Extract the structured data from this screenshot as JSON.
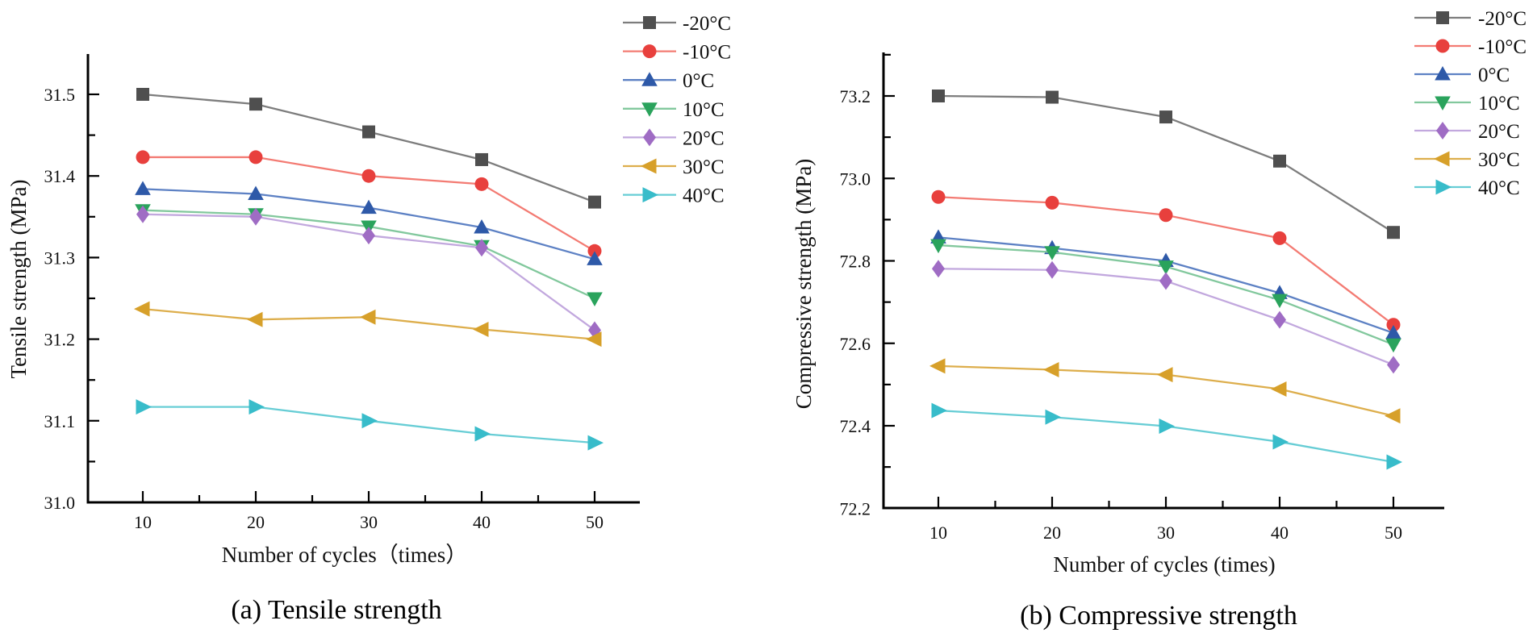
{
  "figure": {
    "background": "#ffffff",
    "caption_a": "(a) Tensile strength",
    "caption_b": "(b) Compressive strength"
  },
  "chart_data": [
    {
      "type": "line",
      "panel": "a",
      "title": "(a) Tensile strength",
      "xlabel": "Number of cycles（times）",
      "ylabel": "Tensile strength (MPa)",
      "x": [
        10,
        20,
        30,
        40,
        50
      ],
      "xlim": [
        5,
        55
      ],
      "ylim": [
        31.0,
        31.55
      ],
      "yticks": [
        31.0,
        31.1,
        31.2,
        31.3,
        31.4,
        31.5
      ],
      "grid": false,
      "legend_position": "outside-top-right",
      "series": [
        {
          "name": "-20°C",
          "marker": "square",
          "color": "#4f4f4f",
          "line_color": "#7d7d7d",
          "values": [
            31.5,
            31.488,
            31.454,
            31.42,
            31.368
          ]
        },
        {
          "name": "-10°C",
          "marker": "circle",
          "color": "#e8403d",
          "line_color": "#f37b73",
          "values": [
            31.423,
            31.423,
            31.4,
            31.39,
            31.308
          ]
        },
        {
          "name": "0°C",
          "marker": "triangle-up",
          "color": "#2e59a8",
          "line_color": "#5d81c4",
          "values": [
            31.384,
            31.378,
            31.361,
            31.337,
            31.298
          ]
        },
        {
          "name": "10°C",
          "marker": "triangle-down",
          "color": "#2aa35c",
          "line_color": "#82c89d",
          "values": [
            31.358,
            31.353,
            31.338,
            31.314,
            31.25
          ]
        },
        {
          "name": "20°C",
          "marker": "diamond",
          "color": "#9f6cc4",
          "line_color": "#c2a8de",
          "values": [
            31.353,
            31.35,
            31.327,
            31.312,
            31.211
          ]
        },
        {
          "name": "30°C",
          "marker": "triangle-left",
          "color": "#d7a02a",
          "line_color": "#ddae4c",
          "values": [
            31.237,
            31.224,
            31.227,
            31.212,
            31.2
          ]
        },
        {
          "name": "40°C",
          "marker": "triangle-right",
          "color": "#38bcca",
          "line_color": "#67cdd5",
          "values": [
            31.117,
            31.117,
            31.1,
            31.084,
            31.073
          ]
        }
      ]
    },
    {
      "type": "line",
      "panel": "b",
      "title": "(b) Compressive strength",
      "xlabel": "Number of cycles (times)",
      "ylabel": "Compressive strength (MPa)",
      "x": [
        10,
        20,
        30,
        40,
        50
      ],
      "xlim": [
        5,
        55
      ],
      "ylim": [
        72.2,
        73.3
      ],
      "yticks": [
        72.2,
        72.4,
        72.6,
        72.8,
        73.0,
        73.2
      ],
      "grid": false,
      "legend_position": "outside-top-right",
      "series": [
        {
          "name": "-20°C",
          "marker": "square",
          "color": "#4f4f4f",
          "line_color": "#7d7d7d",
          "values": [
            73.2,
            73.197,
            73.149,
            73.042,
            72.869
          ]
        },
        {
          "name": "-10°C",
          "marker": "circle",
          "color": "#e8403d",
          "line_color": "#f37b73",
          "values": [
            72.955,
            72.941,
            72.911,
            72.855,
            72.645
          ]
        },
        {
          "name": "0°C",
          "marker": "triangle-up",
          "color": "#2e59a8",
          "line_color": "#5d81c4",
          "values": [
            72.857,
            72.831,
            72.8,
            72.722,
            72.625
          ]
        },
        {
          "name": "10°C",
          "marker": "triangle-down",
          "color": "#2aa35c",
          "line_color": "#82c89d",
          "values": [
            72.838,
            72.821,
            72.786,
            72.705,
            72.597
          ]
        },
        {
          "name": "20°C",
          "marker": "diamond",
          "color": "#9f6cc4",
          "line_color": "#c2a8de",
          "values": [
            72.781,
            72.778,
            72.751,
            72.657,
            72.548
          ]
        },
        {
          "name": "30°C",
          "marker": "triangle-left",
          "color": "#d7a02a",
          "line_color": "#ddae4c",
          "values": [
            72.545,
            72.536,
            72.524,
            72.489,
            72.424
          ]
        },
        {
          "name": "40°C",
          "marker": "triangle-right",
          "color": "#38bcca",
          "line_color": "#67cdd5",
          "values": [
            72.437,
            72.421,
            72.399,
            72.361,
            72.312
          ]
        }
      ]
    }
  ]
}
